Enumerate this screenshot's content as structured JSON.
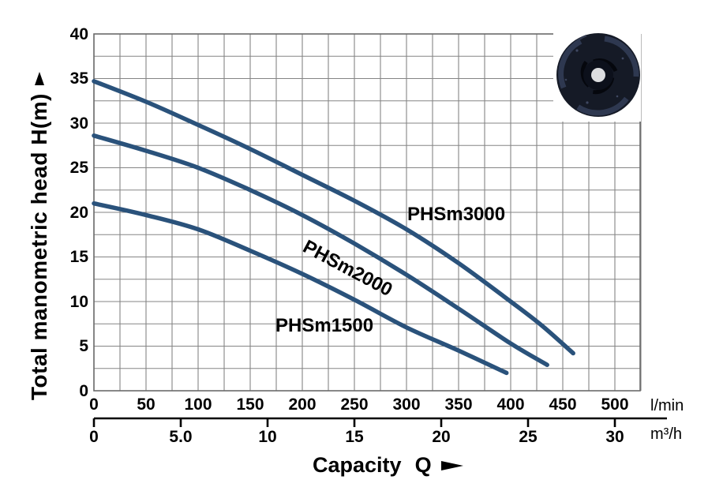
{
  "chart_data": {
    "type": "line",
    "title": "",
    "xlabel": "Capacity  Q",
    "ylabel": "Total manometric head  H(m)",
    "grid": true,
    "legend_position": "inline-curve-labels",
    "y_axis": {
      "range": [
        0,
        40
      ],
      "minor_step": 2.5,
      "tick_values": [
        0,
        5,
        10,
        15,
        20,
        25,
        30,
        35,
        40
      ],
      "tick_labels": [
        "0",
        "5",
        "10",
        "15",
        "20",
        "25",
        "30",
        "35",
        "40"
      ]
    },
    "x_axis_primary": {
      "unit": "l/min",
      "range": [
        0,
        525
      ],
      "minor_step": 25,
      "tick_values": [
        0,
        50,
        100,
        150,
        200,
        250,
        300,
        350,
        400,
        450,
        500
      ],
      "tick_labels": [
        "0",
        "50",
        "100",
        "150",
        "200",
        "250",
        "300",
        "350",
        "400",
        "450",
        "500"
      ]
    },
    "x_axis_secondary": {
      "unit": "m³/h",
      "range": [
        0,
        30
      ],
      "tick_values": [
        0,
        5,
        10,
        15,
        20,
        25,
        30
      ],
      "tick_labels": [
        "0",
        "5.0",
        "10",
        "15",
        "20",
        "25",
        "30"
      ],
      "conversion": "30 m³/h = 500 l/min"
    },
    "series": [
      {
        "label": "PHSm3000",
        "points_lmin_m": [
          [
            0,
            34.7
          ],
          [
            50,
            32.4
          ],
          [
            100,
            29.8
          ],
          [
            150,
            27.1
          ],
          [
            200,
            24.2
          ],
          [
            250,
            21.3
          ],
          [
            300,
            18.1
          ],
          [
            350,
            14.3
          ],
          [
            400,
            10.0
          ],
          [
            430,
            7.3
          ],
          [
            460,
            4.2
          ]
        ]
      },
      {
        "label": "PHSm2000",
        "points_lmin_m": [
          [
            0,
            28.6
          ],
          [
            50,
            26.9
          ],
          [
            100,
            25.0
          ],
          [
            150,
            22.5
          ],
          [
            200,
            19.7
          ],
          [
            250,
            16.5
          ],
          [
            300,
            13.0
          ],
          [
            350,
            9.2
          ],
          [
            400,
            5.3
          ],
          [
            435,
            2.9
          ]
        ]
      },
      {
        "label": "PHSm1500",
        "points_lmin_m": [
          [
            0,
            21.0
          ],
          [
            50,
            19.7
          ],
          [
            100,
            18.1
          ],
          [
            150,
            15.7
          ],
          [
            200,
            13.1
          ],
          [
            250,
            10.2
          ],
          [
            300,
            7.1
          ],
          [
            350,
            4.5
          ],
          [
            396,
            2.0
          ]
        ]
      }
    ],
    "colors": {
      "curve": "#2a527b",
      "grid": "#858585",
      "border": "#6b6b6b",
      "axis": "#000000",
      "text": "#000000",
      "background": "#ffffff"
    }
  },
  "images": {
    "impeller": "pump-impeller-photo"
  }
}
